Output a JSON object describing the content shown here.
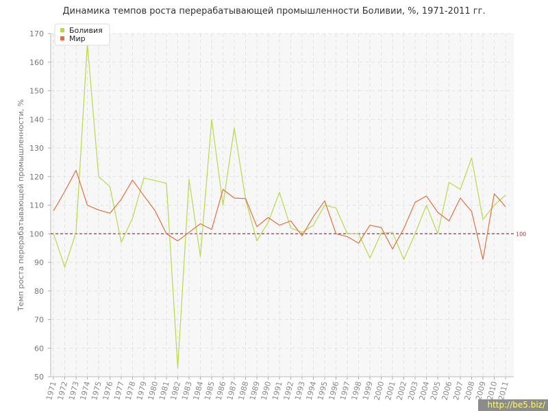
{
  "chart_data": {
    "type": "line",
    "title": "Динамика темпов роста перерабатывающей промышленности Боливии, %, 1971-2011 гг.",
    "ylabel": "Темп роста перерабатывающей промышленности, %",
    "xlabel": "",
    "ylim": [
      50,
      170
    ],
    "yticks": [
      50,
      60,
      70,
      80,
      90,
      100,
      110,
      120,
      130,
      140,
      150,
      160,
      170
    ],
    "grid": true,
    "legend": "top-left",
    "x": [
      1971,
      1972,
      1973,
      1974,
      1975,
      1976,
      1977,
      1978,
      1979,
      1980,
      1981,
      1982,
      1983,
      1984,
      1985,
      1986,
      1987,
      1988,
      1989,
      1990,
      1991,
      1992,
      1993,
      1994,
      1995,
      1996,
      1997,
      1998,
      1999,
      2000,
      2001,
      2002,
      2003,
      2004,
      2005,
      2006,
      2007,
      2008,
      2009,
      2010,
      2011
    ],
    "series": [
      {
        "name": "Боливия",
        "color": "#b8d94a",
        "values": [
          100.2,
          88.3,
          100.5,
          166.5,
          120.0,
          116.5,
          97.0,
          105.5,
          119.5,
          118.6,
          117.6,
          53.0,
          119.0,
          92.0,
          140.0,
          110.0,
          137.0,
          112.0,
          97.5,
          104.0,
          114.5,
          102.0,
          100.5,
          103.0,
          110.0,
          109.0,
          100.0,
          100.0,
          91.5,
          100.2,
          100.5,
          91.0,
          100.0,
          110.0,
          100.0,
          118.0,
          115.5,
          126.5,
          105.0,
          110.0,
          113.5
        ]
      },
      {
        "name": "Мир",
        "color": "#e07040",
        "values": [
          108.0,
          114.8,
          122.2,
          110.0,
          108.3,
          107.2,
          112.0,
          118.8,
          113.3,
          108.0,
          100.0,
          97.5,
          100.5,
          103.5,
          101.5,
          115.5,
          112.5,
          112.3,
          102.5,
          105.7,
          103.0,
          104.5,
          99.3,
          106.0,
          111.5,
          100.0,
          99.0,
          96.7,
          103.0,
          102.2,
          94.7,
          101.8,
          111.0,
          113.2,
          107.5,
          104.5,
          112.5,
          107.8,
          91.0,
          114.0,
          109.5
        ]
      }
    ],
    "reference_line": {
      "value": 100,
      "label": "100",
      "color": "#a0304a"
    }
  },
  "watermark": "http://be5.biz/"
}
